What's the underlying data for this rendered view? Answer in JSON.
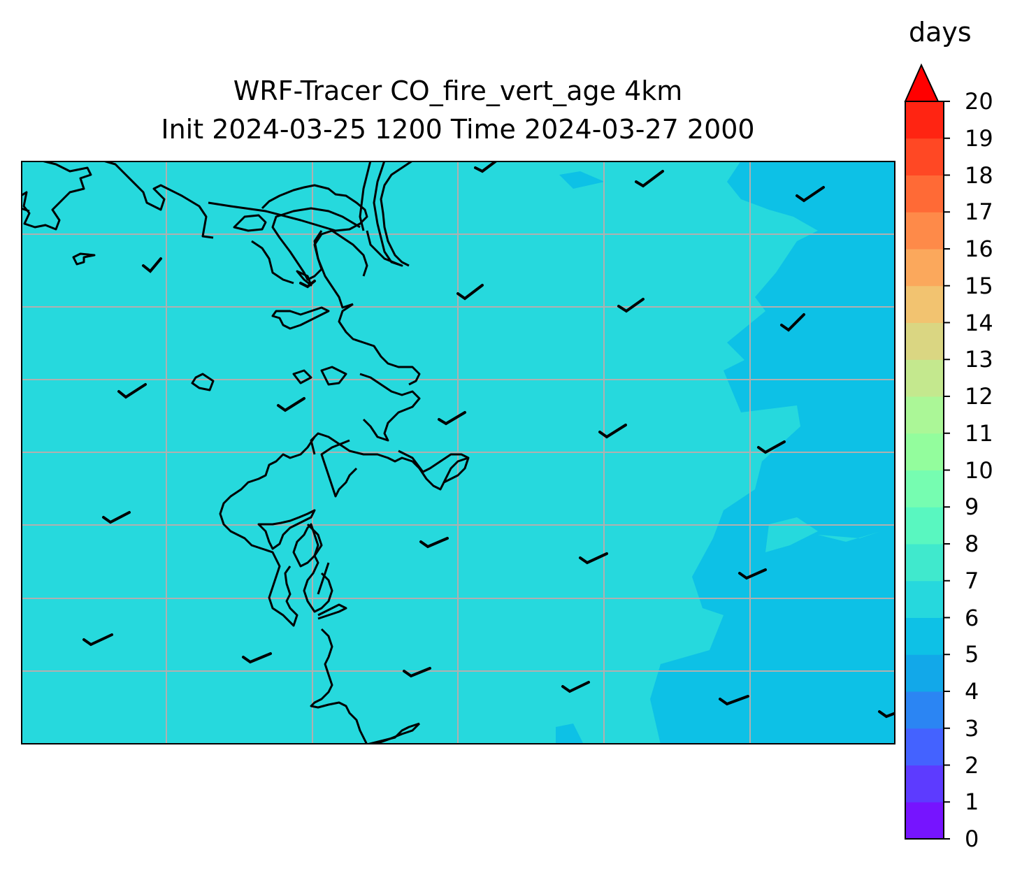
{
  "title_line1": "WRF-Tracer CO_fire_vert_age 4km",
  "title_line2": "Init 2024-03-25 1200 Time 2024-03-27 2000",
  "colorbar": {
    "unit": "days",
    "min": 0,
    "max": 20,
    "ticks": [
      "0",
      "1",
      "2",
      "3",
      "4",
      "5",
      "6",
      "7",
      "8",
      "9",
      "10",
      "11",
      "12",
      "13",
      "14",
      "15",
      "16",
      "17",
      "18",
      "19",
      "20"
    ],
    "extend": "max",
    "colors": [
      "#7614ff",
      "#5d3bff",
      "#4462ff",
      "#2b85f3",
      "#12a8e9",
      "#0ec1e6",
      "#26d8dd",
      "#40e9cd",
      "#59f7c0",
      "#76fdb1",
      "#93fd9d",
      "#abf797",
      "#c4e88e",
      "#dad682",
      "#f2c370",
      "#fba85c",
      "#fe8a49",
      "#ff6a36",
      "#ff4824",
      "#ff2412",
      "#ff0000"
    ]
  },
  "map_data": {
    "background_age_days": 6.5,
    "eastern_region_age_days": 5.5,
    "field_colors": {
      "main": "#26d9dd",
      "east": "#0dc1e6"
    },
    "grid": "on",
    "features": [
      "coastline",
      "wind-barbs"
    ]
  }
}
